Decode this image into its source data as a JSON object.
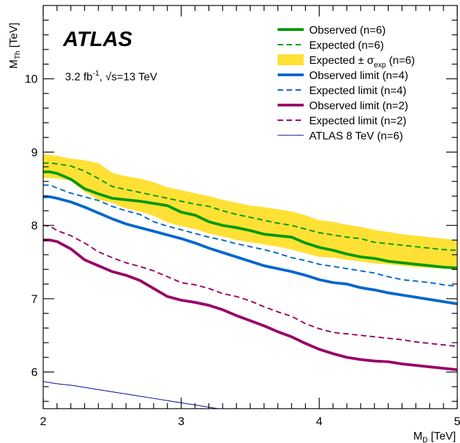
{
  "chart_data": {
    "type": "line",
    "xlabel": "M_D [TeV]",
    "ylabel": "M_Th [TeV]",
    "xlim": [
      2,
      5
    ],
    "ylim": [
      5.5,
      11
    ],
    "grid": false,
    "legend_position": "top-right",
    "x_ticks": [
      "2",
      "3",
      "4",
      "5"
    ],
    "y_ticks": [
      "6",
      "7",
      "8",
      "9",
      "10"
    ],
    "annotations": {
      "experiment": "ATLAS",
      "lumi_prefix": "3.2 fb",
      "lumi_sup": "-1",
      "energy_mid": ", √s=13 TeV"
    },
    "band": {
      "name": "Expected ± σexp (n=6)",
      "color": "#ffe135",
      "x": [
        2.0,
        2.1,
        2.2,
        2.3,
        2.4,
        2.5,
        2.6,
        2.7,
        2.8,
        2.9,
        3.0,
        3.1,
        3.2,
        3.3,
        3.4,
        3.5,
        3.6,
        3.7,
        3.8,
        3.9,
        4.0,
        4.1,
        4.2,
        4.3,
        4.4,
        4.5,
        4.6,
        4.7,
        4.8,
        4.9,
        5.0
      ],
      "upper": [
        8.97,
        8.95,
        8.91,
        8.89,
        8.85,
        8.72,
        8.67,
        8.64,
        8.59,
        8.52,
        8.48,
        8.44,
        8.4,
        8.35,
        8.31,
        8.27,
        8.25,
        8.22,
        8.19,
        8.14,
        8.07,
        8.05,
        8.01,
        7.98,
        7.94,
        7.91,
        7.88,
        7.86,
        7.84,
        7.82,
        7.8
      ],
      "lower": [
        8.65,
        8.64,
        8.61,
        8.46,
        8.35,
        8.31,
        8.23,
        8.19,
        8.13,
        8.04,
        7.99,
        7.95,
        7.89,
        7.85,
        7.8,
        7.77,
        7.74,
        7.71,
        7.67,
        7.62,
        7.57,
        7.56,
        7.53,
        7.51,
        7.48,
        7.47,
        7.45,
        7.43,
        7.42,
        7.41,
        7.4
      ]
    },
    "series": [
      {
        "name": "Observed (n=6)",
        "color": "#009900",
        "style": "solid",
        "width": 4,
        "x": [
          2.0,
          2.05,
          2.1,
          2.2,
          2.3,
          2.4,
          2.5,
          2.6,
          2.7,
          2.8,
          2.9,
          3.0,
          3.1,
          3.2,
          3.3,
          3.4,
          3.5,
          3.6,
          3.7,
          3.8,
          3.9,
          4.0,
          4.1,
          4.2,
          4.3,
          4.4,
          4.5,
          4.6,
          4.7,
          4.8,
          4.9,
          5.0
        ],
        "y": [
          8.73,
          8.73,
          8.71,
          8.63,
          8.5,
          8.43,
          8.37,
          8.35,
          8.33,
          8.3,
          8.27,
          8.18,
          8.14,
          8.05,
          8.0,
          7.97,
          7.93,
          7.88,
          7.86,
          7.84,
          7.76,
          7.7,
          7.66,
          7.61,
          7.57,
          7.55,
          7.51,
          7.49,
          7.47,
          7.45,
          7.43,
          7.42
        ]
      },
      {
        "name": "Expected (n=6)",
        "color": "#009900",
        "style": "dashed",
        "width": 2,
        "x": [
          2.0,
          2.05,
          2.1,
          2.2,
          2.3,
          2.4,
          2.5,
          2.6,
          2.7,
          2.8,
          2.9,
          3.0,
          3.1,
          3.2,
          3.3,
          3.4,
          3.5,
          3.6,
          3.7,
          3.8,
          3.9,
          4.0,
          4.1,
          4.2,
          4.3,
          4.4,
          4.5,
          4.6,
          4.7,
          4.8,
          4.9,
          5.0
        ],
        "y": [
          8.85,
          8.85,
          8.84,
          8.81,
          8.74,
          8.64,
          8.53,
          8.49,
          8.45,
          8.41,
          8.37,
          8.33,
          8.29,
          8.26,
          8.2,
          8.15,
          8.11,
          8.07,
          8.03,
          8.0,
          7.95,
          7.9,
          7.87,
          7.84,
          7.82,
          7.77,
          7.75,
          7.73,
          7.71,
          7.69,
          7.67,
          7.66
        ]
      },
      {
        "name": "Observed limit (n=4)",
        "color": "#0066cc",
        "style": "solid",
        "width": 4,
        "x": [
          2.0,
          2.05,
          2.1,
          2.2,
          2.3,
          2.4,
          2.5,
          2.6,
          2.7,
          2.8,
          2.9,
          3.0,
          3.1,
          3.2,
          3.3,
          3.4,
          3.5,
          3.6,
          3.7,
          3.8,
          3.9,
          4.0,
          4.1,
          4.2,
          4.3,
          4.4,
          4.5,
          4.6,
          4.7,
          4.8,
          4.9,
          5.0
        ],
        "y": [
          8.39,
          8.39,
          8.37,
          8.32,
          8.25,
          8.17,
          8.09,
          8.02,
          7.97,
          7.92,
          7.87,
          7.82,
          7.76,
          7.69,
          7.63,
          7.57,
          7.51,
          7.45,
          7.41,
          7.37,
          7.32,
          7.26,
          7.22,
          7.2,
          7.15,
          7.12,
          7.08,
          7.05,
          7.02,
          6.99,
          6.96,
          6.93
        ]
      },
      {
        "name": "Expected limit (n=4)",
        "color": "#0066cc",
        "style": "dashed",
        "width": 2,
        "x": [
          2.0,
          2.05,
          2.1,
          2.2,
          2.3,
          2.4,
          2.5,
          2.6,
          2.7,
          2.8,
          2.9,
          3.0,
          3.1,
          3.2,
          3.3,
          3.4,
          3.5,
          3.6,
          3.7,
          3.8,
          3.9,
          4.0,
          4.1,
          4.2,
          4.3,
          4.4,
          4.5,
          4.6,
          4.7,
          4.8,
          4.9,
          5.0
        ],
        "y": [
          8.55,
          8.55,
          8.51,
          8.44,
          8.39,
          8.34,
          8.26,
          8.2,
          8.15,
          8.05,
          7.99,
          7.94,
          7.89,
          7.84,
          7.8,
          7.75,
          7.71,
          7.67,
          7.62,
          7.56,
          7.52,
          7.47,
          7.44,
          7.41,
          7.38,
          7.35,
          7.3,
          7.26,
          7.24,
          7.22,
          7.19,
          7.17
        ]
      },
      {
        "name": "Observed limit (n=2)",
        "color": "#990066",
        "style": "solid",
        "width": 4,
        "x": [
          2.0,
          2.05,
          2.1,
          2.2,
          2.3,
          2.4,
          2.5,
          2.6,
          2.7,
          2.8,
          2.9,
          3.0,
          3.1,
          3.2,
          3.3,
          3.4,
          3.5,
          3.6,
          3.7,
          3.8,
          3.9,
          4.0,
          4.1,
          4.2,
          4.3,
          4.4,
          4.5,
          4.6,
          4.7,
          4.8,
          4.9,
          5.0
        ],
        "y": [
          7.8,
          7.8,
          7.78,
          7.68,
          7.53,
          7.45,
          7.37,
          7.32,
          7.25,
          7.14,
          7.03,
          6.98,
          6.95,
          6.91,
          6.85,
          6.77,
          6.7,
          6.63,
          6.55,
          6.48,
          6.39,
          6.31,
          6.25,
          6.2,
          6.17,
          6.15,
          6.14,
          6.11,
          6.09,
          6.07,
          6.05,
          6.03
        ]
      },
      {
        "name": "Expected limit (n=2)",
        "color": "#990066",
        "style": "dashed",
        "width": 2,
        "x": [
          2.0,
          2.05,
          2.1,
          2.2,
          2.3,
          2.4,
          2.5,
          2.6,
          2.7,
          2.8,
          2.9,
          3.0,
          3.1,
          3.2,
          3.3,
          3.4,
          3.5,
          3.6,
          3.7,
          3.8,
          3.9,
          4.0,
          4.1,
          4.2,
          4.3,
          4.4,
          4.5,
          4.6,
          4.7,
          4.8,
          4.9,
          5.0
        ],
        "y": [
          8.0,
          7.99,
          7.93,
          7.86,
          7.76,
          7.64,
          7.56,
          7.49,
          7.44,
          7.38,
          7.3,
          7.22,
          7.19,
          7.14,
          7.07,
          7.03,
          6.97,
          6.89,
          6.82,
          6.76,
          6.66,
          6.59,
          6.54,
          6.52,
          6.5,
          6.48,
          6.46,
          6.44,
          6.41,
          6.39,
          6.37,
          6.35
        ]
      },
      {
        "name": "ATLAS 8 TeV (n=6)",
        "color": "#000099",
        "style": "solid",
        "width": 1,
        "x": [
          2.0,
          2.1,
          2.2,
          2.3,
          2.4,
          2.5,
          2.6,
          2.7,
          2.8,
          2.9,
          3.0,
          3.1,
          3.2,
          3.3
        ],
        "y": [
          5.87,
          5.84,
          5.82,
          5.79,
          5.76,
          5.73,
          5.7,
          5.67,
          5.64,
          5.61,
          5.58,
          5.55,
          5.52,
          5.49
        ]
      }
    ],
    "legend": [
      {
        "label": "Observed (n=6)",
        "kind": "solid",
        "color": "#009900",
        "width": 4
      },
      {
        "label": "Expected (n=6)",
        "kind": "dashed",
        "color": "#009900",
        "width": 2
      },
      {
        "label_main": "Expected ± σ",
        "label_sub": "exp",
        "label_tail": " (n=6)",
        "kind": "band",
        "color": "#ffe135"
      },
      {
        "label": "Observed limit (n=4)",
        "kind": "solid",
        "color": "#0066cc",
        "width": 4
      },
      {
        "label": "Expected limit (n=4)",
        "kind": "dashed",
        "color": "#0066cc",
        "width": 2
      },
      {
        "label": "Observed limit (n=2)",
        "kind": "solid",
        "color": "#990066",
        "width": 4
      },
      {
        "label": "Expected limit (n=2)",
        "kind": "dashed",
        "color": "#990066",
        "width": 2
      },
      {
        "label": "ATLAS 8 TeV (n=6)",
        "kind": "solid",
        "color": "#000099",
        "width": 1
      }
    ]
  }
}
